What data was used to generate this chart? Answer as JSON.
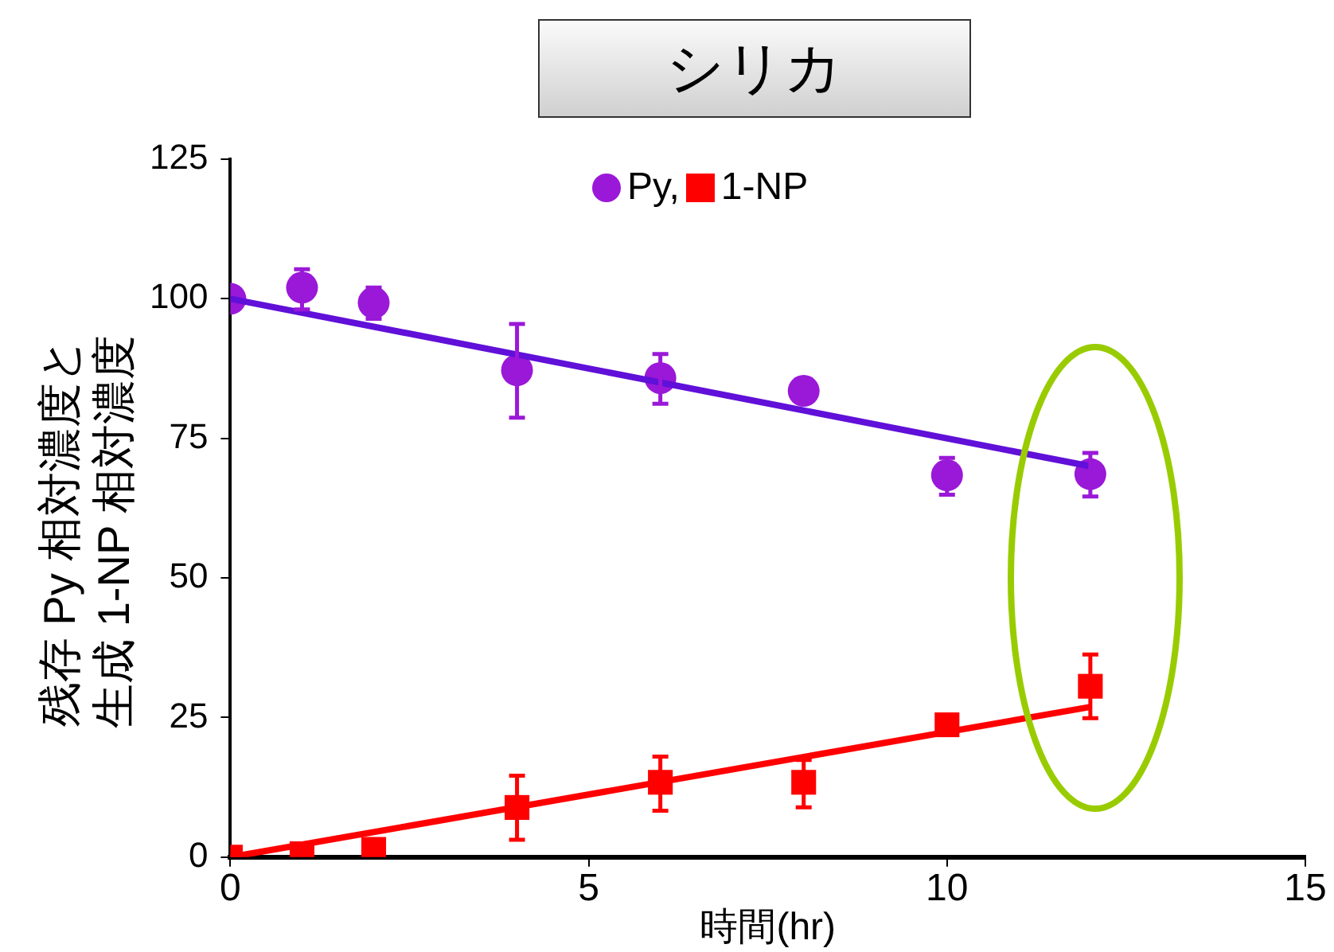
{
  "chart_data": {
    "type": "scatter",
    "title": "シリカ",
    "xlabel": "時間(hr)",
    "ylabel": "残存 Py 相対濃度と生成 1-NP 相対濃度",
    "xlim": [
      0,
      15
    ],
    "xticks": [
      0,
      5,
      10,
      15
    ],
    "ylim": [
      0,
      125
    ],
    "yticks": [
      0,
      25,
      50,
      75,
      100,
      125
    ],
    "grid": false,
    "legend": "top",
    "series": [
      {
        "name": "Py,",
        "marker": "circle",
        "color": "#9a18d8",
        "x": [
          0,
          1,
          2,
          4,
          6,
          8,
          10,
          12
        ],
        "values": [
          100,
          102,
          99.3,
          87.2,
          85.8,
          83.5,
          68.4,
          68.6
        ],
        "errors": [
          null,
          [
            98.1,
            105.3
          ],
          [
            96.4,
            102
          ],
          [
            78.7,
            95.5
          ],
          [
            81.2,
            90.1
          ],
          null,
          [
            64.9,
            71.5
          ],
          [
            64.6,
            72.4
          ]
        ]
      },
      {
        "name": "1-NP",
        "marker": "square",
        "color": "#ff0000",
        "x": [
          0,
          1,
          2,
          4,
          6,
          8,
          10,
          12
        ],
        "values": [
          0,
          0.6,
          1.4,
          8.9,
          13.4,
          13.4,
          23.7,
          30.6
        ],
        "errors": [
          null,
          null,
          null,
          [
            3.1,
            14.6
          ],
          [
            8.3,
            18
          ],
          [
            8.9,
            17.4
          ],
          null,
          [
            24.9,
            36.3
          ]
        ]
      },
      {
        "type": "line",
        "marker": "none",
        "color": "#6010d8",
        "x": [
          0,
          12
        ],
        "values": [
          100,
          70
        ]
      },
      {
        "type": "line",
        "marker": "none",
        "color": "#ff0000",
        "x": [
          0,
          12
        ],
        "values": [
          0,
          26.9
        ]
      }
    ]
  }
}
